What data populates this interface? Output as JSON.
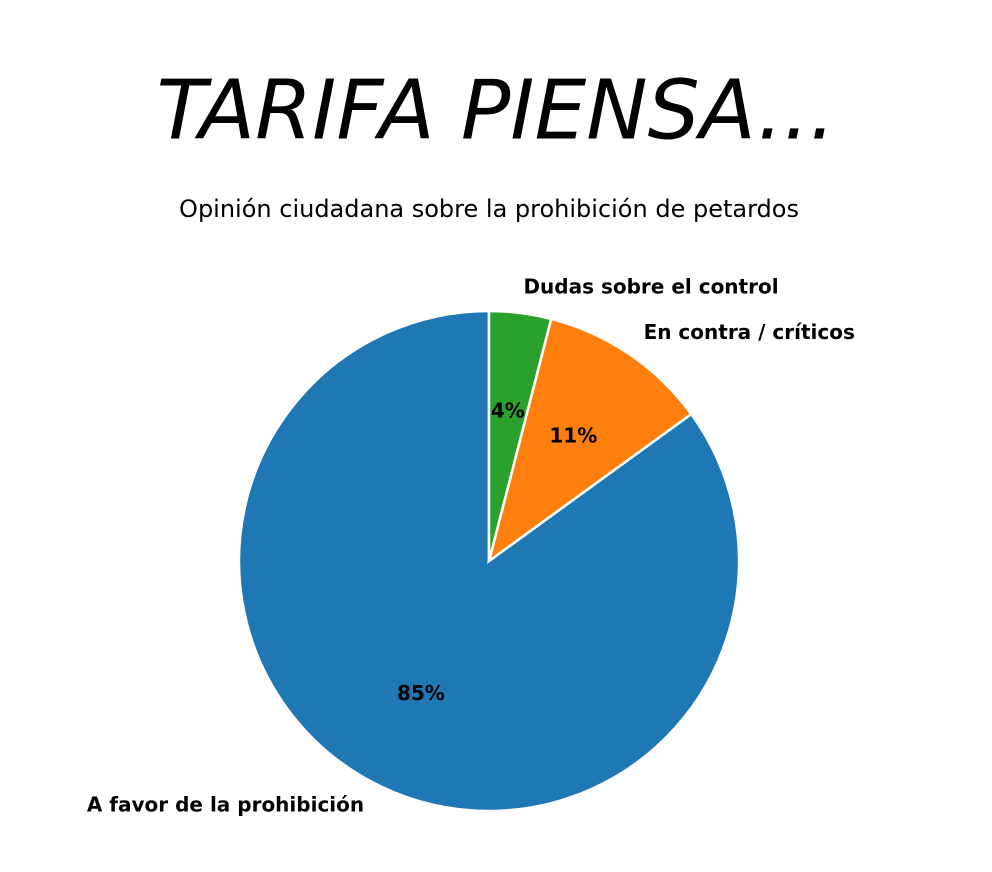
{
  "chart_data": {
    "type": "pie",
    "title": "TARIFA PIENSA...",
    "subtitle": "Opinión ciudadana sobre la prohibición de petardos",
    "categories": [
      "A favor de la prohibición",
      "En contra / críticos",
      "Dudas sobre el control"
    ],
    "values": [
      85,
      11,
      4
    ],
    "value_labels": [
      "85%",
      "11%",
      "4%"
    ],
    "colors": [
      "#1f77b4",
      "#ff7f0e",
      "#2ca02c"
    ]
  }
}
